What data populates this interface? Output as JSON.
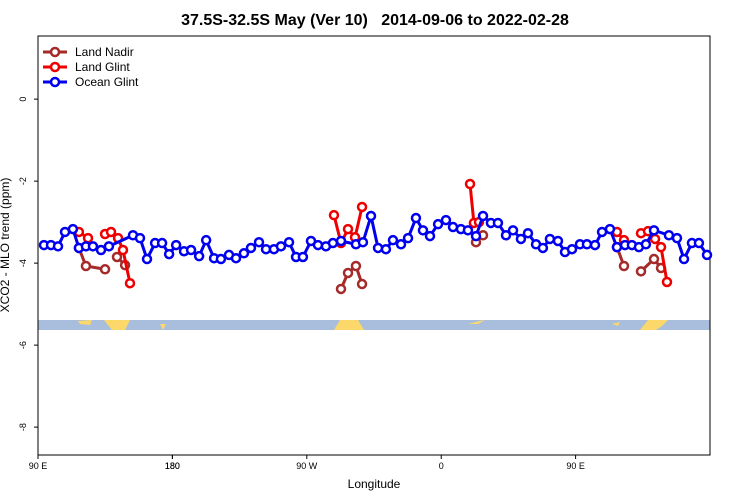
{
  "chart_data": {
    "type": "line",
    "title": "37.5S-32.5S May (Ver 10)   2014-09-06 to 2022-02-28",
    "xlabel": "Longitude",
    "ylabel": "XCO2 - MLO trend (ppm)",
    "xlim": [
      90,
      540
    ],
    "ylim": [
      -8.68,
      1.54
    ],
    "xticks": [
      {
        "value": 90,
        "label": "90 E"
      },
      180,
      {
        "value": 270,
        "label": "90 W"
      },
      {
        "value": 360,
        "label": "0"
      },
      {
        "value": 450,
        "label": "90 E"
      },
      180.0001
    ],
    "yticks": [
      0,
      -2,
      -4,
      -6,
      -8
    ],
    "legend": "top-left",
    "series": [
      {
        "name": "Land Nadir",
        "color": "#a52a2a",
        "x": [
          117.4,
          122.1,
          134.9,
          null,
          142.9,
          148.3,
          null,
          292.9,
          297.6,
          302.9,
          307.0,
          null,
          383.3,
          388.0,
          null,
          477.7,
          482.4,
          null,
          493.8,
          502.5,
          507.2
        ],
        "values": [
          -3.63,
          -4.07,
          -4.15,
          null,
          -3.85,
          -4.05,
          null,
          -4.63,
          -4.24,
          -4.07,
          -4.51,
          null,
          -3.49,
          -3.32,
          null,
          -3.61,
          -4.07,
          null,
          -4.2,
          -3.9,
          -4.12
        ]
      },
      {
        "name": "Land Glint",
        "color": "#ee0000",
        "x": [
          117.4,
          123.5,
          null,
          134.9,
          138.9,
          143.6,
          146.9,
          151.6,
          null,
          288.2,
          292.9,
          297.6,
          302.3,
          307.0,
          null,
          379.3,
          381.9,
          385.3,
          null,
          477.7,
          482.4,
          null,
          493.8,
          498.5,
          503.2,
          507.2,
          511.2
        ],
        "values": [
          -3.24,
          -3.39,
          null,
          -3.29,
          -3.24,
          -3.39,
          -3.68,
          -4.49,
          null,
          -2.83,
          -3.51,
          -3.17,
          -3.37,
          -2.63,
          null,
          -2.07,
          -3.02,
          -3.0,
          null,
          -3.24,
          -3.44,
          null,
          -3.27,
          -3.22,
          -3.41,
          -3.61,
          -4.46
        ]
      },
      {
        "name": "Ocean Glint",
        "color": "#0000ee",
        "x": [
          94.0,
          98.7,
          103.4,
          108.1,
          113.4,
          117.4,
          122.1,
          126.8,
          132.2,
          137.5,
          153.6,
          158.3,
          163.0,
          168.4,
          173.1,
          177.8,
          182.5,
          187.8,
          192.5,
          197.9,
          202.6,
          207.9,
          212.5,
          217.9,
          222.6,
          227.9,
          232.6,
          238.0,
          242.7,
          248.0,
          252.7,
          258.1,
          262.8,
          267.4,
          272.8,
          277.5,
          282.8,
          287.5,
          292.9,
          302.9,
          307.6,
          313.0,
          317.7,
          323.0,
          327.7,
          333.1,
          337.8,
          343.1,
          347.8,
          352.5,
          357.9,
          363.2,
          367.9,
          373.2,
          377.9,
          383.3,
          388.0,
          393.3,
          398.0,
          403.4,
          408.1,
          413.4,
          418.1,
          423.5,
          428.1,
          432.8,
          438.2,
          442.9,
          447.6,
          452.9,
          457.6,
          463.0,
          467.7,
          473.0,
          477.7,
          483.1,
          487.7,
          492.4,
          497.1,
          502.5,
          512.5,
          517.9,
          522.6,
          527.9,
          532.6,
          538.0
        ],
        "values": [
          -3.56,
          -3.56,
          -3.59,
          -3.24,
          -3.17,
          -3.63,
          -3.59,
          -3.59,
          -3.68,
          -3.59,
          -3.32,
          -3.39,
          -3.9,
          -3.51,
          -3.51,
          -3.78,
          -3.56,
          -3.71,
          -3.68,
          -3.83,
          -3.44,
          -3.88,
          -3.9,
          -3.8,
          -3.88,
          -3.76,
          -3.63,
          -3.49,
          -3.66,
          -3.66,
          -3.59,
          -3.49,
          -3.85,
          -3.85,
          -3.46,
          -3.56,
          -3.59,
          -3.51,
          -3.46,
          -3.54,
          -3.49,
          -2.85,
          -3.63,
          -3.66,
          -3.44,
          -3.54,
          -3.39,
          -2.9,
          -3.2,
          -3.34,
          -3.05,
          -2.95,
          -3.12,
          -3.17,
          -3.2,
          -3.34,
          -2.85,
          -3.02,
          -3.02,
          -3.32,
          -3.2,
          -3.41,
          -3.27,
          -3.54,
          -3.63,
          -3.41,
          -3.46,
          -3.73,
          -3.66,
          -3.54,
          -3.54,
          -3.56,
          -3.24,
          -3.17,
          -3.61,
          -3.56,
          -3.56,
          -3.61,
          -3.54,
          -3.2,
          -3.32,
          -3.39,
          -3.9,
          -3.51,
          -3.51,
          -3.8
        ]
      }
    ]
  }
}
